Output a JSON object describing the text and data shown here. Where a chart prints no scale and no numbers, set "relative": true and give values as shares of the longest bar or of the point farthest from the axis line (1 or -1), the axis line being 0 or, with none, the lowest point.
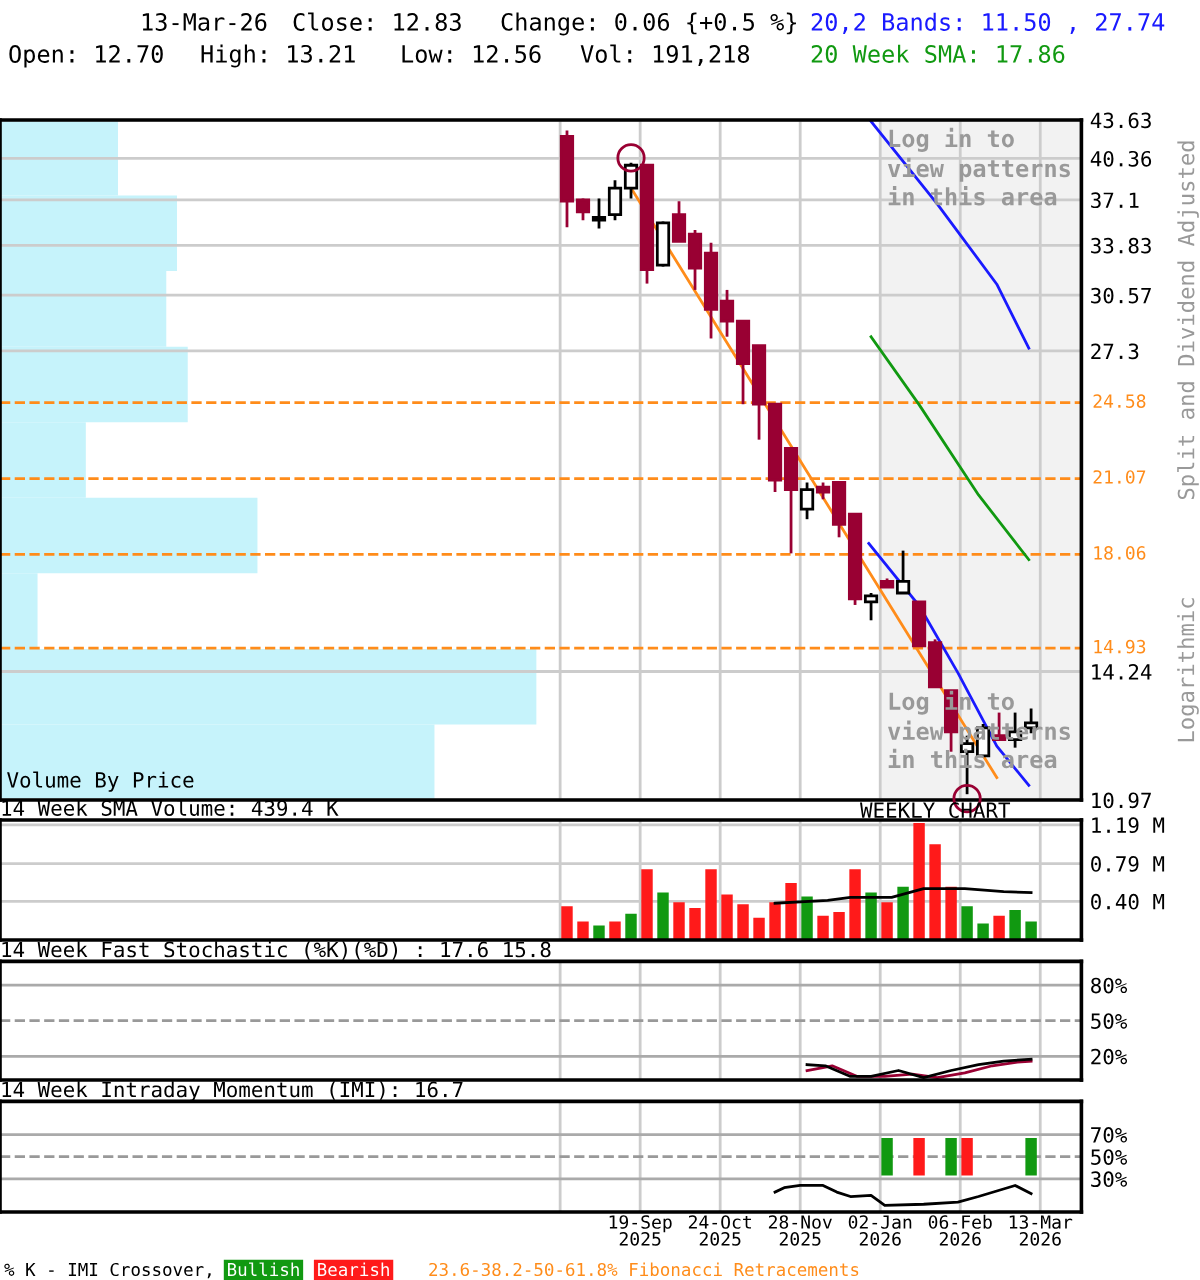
{
  "chart_data": [
    {
      "type": "candlestick",
      "log": true,
      "grid": true,
      "legend": "top right",
      "tick_labels": "y",
      "xlim": [
        "2024-12-13",
        "2026-03-31"
      ],
      "ylim": [
        10.97,
        43.63
      ],
      "xticks": [
        {
          "value": "2025-08-15",
          "label": null
        },
        {
          "value": "2025-09-19",
          "label": null
        },
        {
          "value": "2025-10-24",
          "label": null
        },
        {
          "value": "2025-11-28",
          "label": null
        },
        {
          "value": "2026-01-02",
          "label": null
        },
        {
          "value": "2026-02-06",
          "label": null
        },
        {
          "value": "2026-03-13",
          "label": null
        }
      ],
      "yticks": [
        10.97,
        14.24,
        27.3,
        30.57,
        33.83,
        37.1,
        40.36,
        43.63
      ],
      "ref_lines": [
        {
          "axis": "y",
          "value": 24.58,
          "label": "24.58",
          "color": "#ff8c1a",
          "line_style": "dashed"
        },
        {
          "axis": "y",
          "value": 21.07,
          "label": "21.07",
          "color": "#ff8c1a",
          "line_style": "dashed"
        },
        {
          "axis": "y",
          "value": 18.06,
          "label": "18.06",
          "color": "#ff8c1a",
          "line_style": "dashed"
        },
        {
          "axis": "y",
          "value": 14.93,
          "label": "14.93",
          "color": "#ff8c1a",
          "line_style": "dashed"
        }
      ],
      "bands": [
        {
          "axis": "x",
          "from": "2026-01-02",
          "to": "2026-03-31",
          "color": "#f2f2f2"
        }
      ],
      "annotations": [
        "13-Mar-26",
        "Close: 12.83",
        "Change: 0.06 {+0.5 %}",
        "Open: 12.70",
        "High: 13.21",
        "Low: 12.56",
        "Vol: 191,218",
        "Split and Dividend Adjusted",
        "Logarithmic",
        "23.6-38.2-50-61.8% Fibonacci Retracements",
        {
          "text": "Log in to\nview patterns\nin this area",
          "x": "2026-01-05",
          "y": 39.5
        },
        {
          "text": "Log in to\nview patterns\nin this area",
          "x": "2026-01-05",
          "y": 12.6
        }
      ],
      "series": [
        {
          "type": "candlestick",
          "color": "#000000",
          "x": [
            "2025-08-18",
            "2025-08-25",
            "2025-09-01",
            "2025-09-08",
            "2025-09-15",
            "2025-09-22",
            "2025-09-29",
            "2025-10-06",
            "2025-10-13",
            "2025-10-20",
            "2025-10-27",
            "2025-11-03",
            "2025-11-10",
            "2025-11-17",
            "2025-11-24",
            "2025-12-01",
            "2025-12-08",
            "2025-12-15",
            "2025-12-22",
            "2025-12-29",
            "2026-01-05",
            "2026-01-12",
            "2026-01-19",
            "2026-01-26",
            "2026-02-02",
            "2026-02-09",
            "2026-02-16",
            "2026-02-23",
            "2026-03-02",
            "2026-03-09"
          ],
          "ohlc": [
            [
              42.2,
              42.7,
              35.1,
              37.0
            ],
            [
              37.1,
              37.2,
              35.6,
              36.2
            ],
            [
              35.6,
              37.2,
              35.0,
              35.8
            ],
            [
              36.0,
              38.6,
              35.6,
              38.0
            ],
            [
              38.0,
              40.0,
              37.2,
              39.8
            ],
            [
              39.8,
              39.9,
              31.3,
              32.2
            ],
            [
              32.5,
              35.5,
              32.4,
              35.4
            ],
            [
              36.0,
              37.0,
              34.1,
              34.1
            ],
            [
              34.6,
              34.9,
              30.9,
              32.3
            ],
            [
              33.3,
              34.0,
              28.0,
              29.7
            ],
            [
              30.2,
              30.9,
              28.1,
              29.0
            ],
            [
              29.0,
              29.0,
              24.5,
              26.6
            ],
            [
              27.6,
              27.6,
              22.8,
              24.5
            ],
            [
              24.5,
              24.5,
              20.5,
              21.0
            ],
            [
              22.4,
              22.4,
              18.1,
              20.6
            ],
            [
              19.8,
              20.9,
              19.4,
              20.6
            ],
            [
              20.7,
              20.9,
              20.2,
              20.5
            ],
            [
              20.9,
              20.9,
              18.7,
              19.2
            ],
            [
              19.6,
              19.6,
              16.3,
              16.5
            ],
            [
              16.4,
              16.7,
              15.8,
              16.6
            ],
            [
              17.1,
              17.2,
              16.9,
              16.9
            ],
            [
              16.7,
              18.2,
              16.7,
              17.1
            ],
            [
              16.4,
              16.4,
              15.0,
              15.0
            ],
            [
              15.1,
              15.2,
              13.8,
              13.8
            ],
            [
              13.7,
              13.7,
              12.1,
              12.6
            ],
            [
              12.1,
              12.5,
              11.1,
              12.3
            ],
            [
              12.0,
              12.8,
              12.0,
              12.7
            ],
            [
              12.5,
              13.1,
              12.4,
              12.4
            ],
            [
              12.4,
              13.1,
              12.2,
              12.6
            ],
            [
              12.7,
              13.21,
              12.56,
              12.83
            ]
          ],
          "colors": [
            "#990033",
            "#990033",
            "#ffffff",
            "#ffffff",
            "#ffffff",
            "#990033",
            "#ffffff",
            "#990033",
            "#990033",
            "#990033",
            "#990033",
            "#990033",
            "#990033",
            "#990033",
            "#990033",
            "#ffffff",
            "#990033",
            "#990033",
            "#990033",
            "#ffffff",
            "#990033",
            "#ffffff",
            "#990033",
            "#990033",
            "#990033",
            "#ffffff",
            "#ffffff",
            "#990033",
            "#ffffff",
            "#ffffff"
          ]
        },
        {
          "type": "line",
          "color": "#ff8c1a",
          "x": [
            "2025-09-15",
            "2026-02-22"
          ],
          "values": [
            38.0,
            11.48
          ]
        },
        {
          "type": "line",
          "name": "20,2 Bands: 11.50 , 27.74",
          "color": "#1a1aff",
          "x": [
            "2025-12-29",
            "2026-01-27",
            "2026-02-22",
            "2026-03-08"
          ],
          "values": [
            43.5,
            36.78,
            31.26,
            27.45
          ]
        },
        {
          "type": "line",
          "color": "#1a1aff",
          "x": [
            "2025-12-28",
            "2026-01-19",
            "2026-02-05",
            "2026-02-22",
            "2026-03-08"
          ],
          "values": [
            18.47,
            16.28,
            14.2,
            12.24,
            11.3
          ]
        },
        {
          "type": "line",
          "name": "20 Week SMA: 17.86",
          "color": "#119911",
          "x": [
            "2025-12-29",
            "2026-01-19",
            "2026-02-14",
            "2026-03-08"
          ],
          "values": [
            28.1,
            24.48,
            20.38,
            17.87
          ]
        },
        {
          "type": "scatter",
          "marker": "circle",
          "color": "#990033",
          "x": [
            "2025-09-15",
            "2026-02-09"
          ],
          "values": [
            40.4,
            11.0
          ]
        }
      ]
    },
    {
      "type": "bar",
      "orientation": "horizontal",
      "relative": true,
      "title": "Volume By Price",
      "color": "#c6f3fb",
      "categories": [
        null,
        null,
        null,
        null,
        null,
        null,
        null,
        null,
        null
      ],
      "values": [
        0.22,
        0.33,
        0.31,
        0.35,
        0.16,
        0.48,
        0.07,
        1,
        0.81
      ]
    },
    {
      "type": "bar",
      "title": "14 Week SMA Volume: 439.4 K",
      "grid": true,
      "tick_labels": "y",
      "annotations": [
        "WEEKLY CHART"
      ],
      "xlim": [
        "2024-12-13",
        "2026-03-31"
      ],
      "ylim": [
        0,
        1.24
      ],
      "xticks": [
        {
          "value": "2025-08-15",
          "label": null
        },
        {
          "value": "2025-09-19",
          "label": null
        },
        {
          "value": "2025-10-24",
          "label": null
        },
        {
          "value": "2025-11-28",
          "label": null
        },
        {
          "value": "2026-01-02",
          "label": null
        },
        {
          "value": "2026-02-06",
          "label": null
        },
        {
          "value": "2026-03-13",
          "label": null
        }
      ],
      "yticks": [
        {
          "value": 0.4,
          "label": "0.40 M"
        },
        {
          "value": 0.79,
          "label": "0.79 M"
        },
        {
          "value": 1.19,
          "label": "1.19 M"
        }
      ],
      "series": [
        {
          "type": "bar",
          "x": [
            "2025-08-18",
            "2025-08-25",
            "2025-09-01",
            "2025-09-08",
            "2025-09-15",
            "2025-09-22",
            "2025-09-29",
            "2025-10-06",
            "2025-10-13",
            "2025-10-20",
            "2025-10-27",
            "2025-11-03",
            "2025-11-10",
            "2025-11-17",
            "2025-11-24",
            "2025-12-01",
            "2025-12-08",
            "2025-12-15",
            "2025-12-22",
            "2025-12-29",
            "2026-01-05",
            "2026-01-12",
            "2026-01-19",
            "2026-01-26",
            "2026-02-02",
            "2026-02-09",
            "2026-02-16",
            "2026-02-23",
            "2026-03-02",
            "2026-03-09"
          ],
          "values": [
            0.35,
            0.19,
            0.15,
            0.19,
            0.27,
            0.73,
            0.49,
            0.39,
            0.33,
            0.73,
            0.47,
            0.37,
            0.23,
            0.39,
            0.59,
            0.45,
            0.25,
            0.29,
            0.73,
            0.49,
            0.39,
            0.55,
            1.21,
            0.99,
            0.55,
            0.35,
            0.17,
            0.25,
            0.31,
            0.19
          ],
          "colors": [
            "#ff1a1a",
            "#ff1a1a",
            "#119911",
            "#ff1a1a",
            "#119911",
            "#ff1a1a",
            "#119911",
            "#ff1a1a",
            "#ff1a1a",
            "#ff1a1a",
            "#ff1a1a",
            "#ff1a1a",
            "#ff1a1a",
            "#ff1a1a",
            "#ff1a1a",
            "#119911",
            "#ff1a1a",
            "#ff1a1a",
            "#ff1a1a",
            "#119911",
            "#ff1a1a",
            "#119911",
            "#ff1a1a",
            "#ff1a1a",
            "#ff1a1a",
            "#119911",
            "#119911",
            "#ff1a1a",
            "#119911",
            "#119911"
          ]
        },
        {
          "type": "line",
          "color": "#000000",
          "x": [
            "2025-11-17",
            "2025-12-10",
            "2025-12-20",
            "2026-01-07",
            "2026-01-21",
            "2026-02-08",
            "2026-02-25",
            "2026-03-09"
          ],
          "values": [
            0.38,
            0.41,
            0.44,
            0.44,
            0.53,
            0.53,
            0.5,
            0.49
          ]
        }
      ]
    },
    {
      "type": "line",
      "title": "14 Week Fast Stochastic (%K)(%D) : 17.6 15.8",
      "grid": "x",
      "tick_labels": "y",
      "xlim": [
        "2024-12-13",
        "2026-03-31"
      ],
      "ylim": [
        0,
        100
      ],
      "xticks": [
        {
          "value": "2025-08-15",
          "label": null
        },
        {
          "value": "2025-09-19",
          "label": null
        },
        {
          "value": "2025-10-24",
          "label": null
        },
        {
          "value": "2025-11-28",
          "label": null
        },
        {
          "value": "2026-01-02",
          "label": null
        },
        {
          "value": "2026-02-06",
          "label": null
        },
        {
          "value": "2026-03-13",
          "label": null
        }
      ],
      "yticks": [
        {
          "value": 20,
          "label": "20%"
        },
        {
          "value": 50,
          "label": "50%"
        },
        {
          "value": 80,
          "label": "80%"
        }
      ],
      "ref_lines": [
        {
          "axis": "y",
          "value": 20,
          "color": "#aaaaaa",
          "line_style": "solid"
        },
        {
          "axis": "y",
          "value": 50,
          "color": "#999999",
          "line_style": "dashed"
        },
        {
          "axis": "y",
          "value": 80,
          "color": "#aaaaaa",
          "line_style": "solid"
        }
      ],
      "series": [
        {
          "type": "line",
          "color": "#990033",
          "x": [
            "2025-12-01",
            "2025-12-12",
            "2025-12-23",
            "2026-01-04",
            "2026-01-16",
            "2026-01-27",
            "2026-02-08",
            "2026-02-20",
            "2026-03-03",
            "2026-03-09"
          ],
          "values": [
            8,
            12,
            3,
            3,
            5,
            2,
            6,
            12,
            15,
            15.8
          ]
        },
        {
          "type": "line",
          "color": "#000000",
          "x": [
            "2025-12-01",
            "2025-12-09",
            "2025-12-20",
            "2025-12-29",
            "2026-01-10",
            "2026-01-21",
            "2026-02-02",
            "2026-02-14",
            "2026-02-25",
            "2026-03-09"
          ],
          "values": [
            13,
            12,
            3,
            3,
            8,
            2,
            8,
            13,
            16,
            17.6
          ]
        }
      ]
    },
    {
      "type": "bar",
      "title": "14 Week Intraday Momentum (IMI): 16.7",
      "grid": "x",
      "legend": "bottom",
      "legend_title": "% K - IMI Crossover,",
      "xlim": [
        "2024-12-13",
        "2026-03-31"
      ],
      "ylim": [
        0,
        100
      ],
      "xticks": [
        {
          "value": "2025-08-15",
          "label": null
        },
        {
          "value": "2025-09-19",
          "label": "19-Sep\n2025"
        },
        {
          "value": "2025-10-24",
          "label": "24-Oct\n2025"
        },
        {
          "value": "2025-11-28",
          "label": "28-Nov\n2025"
        },
        {
          "value": "2026-01-02",
          "label": "02-Jan\n2026"
        },
        {
          "value": "2026-02-06",
          "label": "06-Feb\n2026"
        },
        {
          "value": "2026-03-13",
          "label": "13-Mar\n2026"
        }
      ],
      "yticks": [
        {
          "value": 30,
          "label": "30%"
        },
        {
          "value": 50,
          "label": "50%"
        },
        {
          "value": 70,
          "label": "70%"
        }
      ],
      "ref_lines": [
        {
          "axis": "y",
          "value": 30,
          "color": "#aaaaaa",
          "line_style": "solid"
        },
        {
          "axis": "y",
          "value": 50,
          "color": "#999999",
          "line_style": "dashed"
        },
        {
          "axis": "y",
          "value": 70,
          "color": "#aaaaaa",
          "line_style": "solid"
        }
      ],
      "series": [
        {
          "type": "bar",
          "name": "Bullish",
          "color": "#119911",
          "x": [
            "2026-01-05",
            "2026-02-02",
            "2026-03-09"
          ],
          "base": [
            33,
            33,
            33
          ],
          "values": [
            34,
            34,
            34
          ]
        },
        {
          "type": "bar",
          "name": "Bearish",
          "color": "#ff1a1a",
          "x": [
            "2026-01-19",
            "2026-02-09"
          ],
          "base": [
            33,
            33
          ],
          "values": [
            34,
            34
          ]
        },
        {
          "type": "line",
          "color": "#000000",
          "x": [
            "2025-11-17",
            "2025-11-21",
            "2025-11-28",
            "2025-12-08",
            "2025-12-14",
            "2025-12-20",
            "2025-12-29",
            "2026-01-04",
            "2026-01-21",
            "2026-02-05",
            "2026-02-14",
            "2026-02-22",
            "2026-03-02",
            "2026-03-09"
          ],
          "values": [
            18,
            22,
            24,
            24,
            18,
            14,
            15,
            6,
            7,
            9,
            14,
            19,
            24,
            16.7
          ]
        }
      ]
    }
  ]
}
